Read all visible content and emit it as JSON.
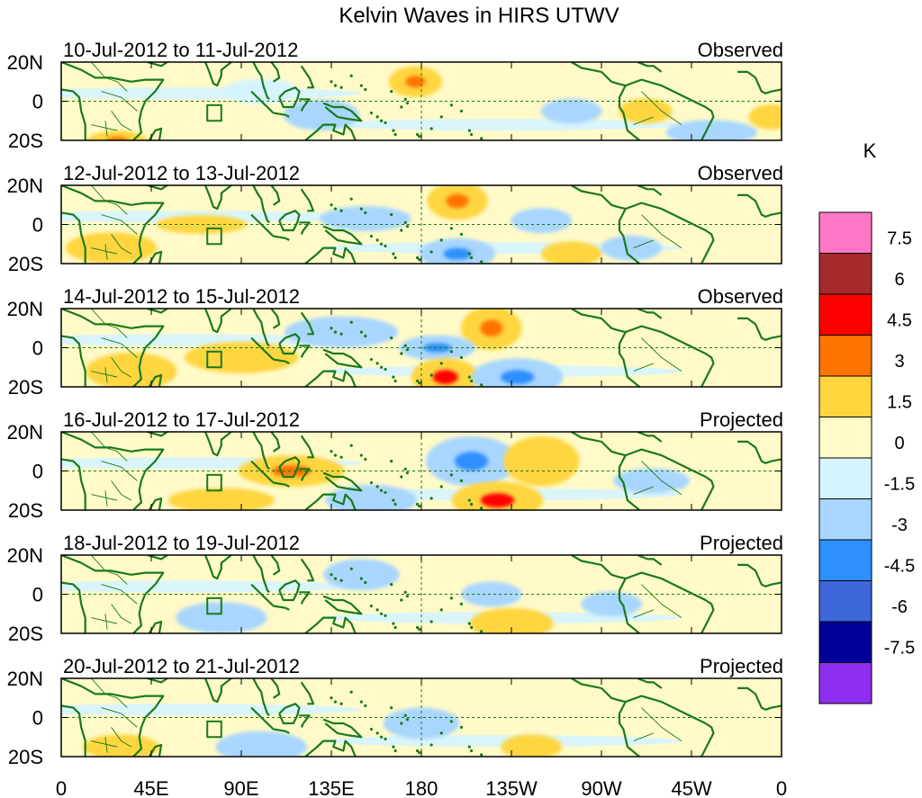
{
  "chart_data": {
    "type": "heatmap",
    "title": "Kelvin Waves in HIRS UTWV",
    "units": "K",
    "x_ticks": [
      "0",
      "45E",
      "90E",
      "135E",
      "180",
      "135W",
      "90W",
      "45W",
      "0"
    ],
    "x_tick_values": [
      0,
      45,
      90,
      135,
      180,
      225,
      270,
      315,
      360
    ],
    "y_ticks": [
      "20N",
      "0",
      "20S"
    ],
    "y_tick_values": [
      20,
      0,
      -20
    ],
    "lon_range": [
      0,
      360
    ],
    "lat_range": [
      -20,
      20
    ],
    "colorbar": {
      "labels": [
        "7.5",
        "6",
        "4.5",
        "3",
        "1.5",
        "0",
        "-1.5",
        "-3",
        "-4.5",
        "-6",
        "-7.5"
      ],
      "colors": [
        "#ff77c4",
        "#a52a2a",
        "#ff0000",
        "#ff7300",
        "#ffd540",
        "#fffac8",
        "#d6f4ff",
        "#a8d6ff",
        "#2e8fff",
        "#3d67da",
        "#000099",
        "#8f2df0"
      ]
    },
    "panels": [
      {
        "date_range": "10-Jul-2012 to 11-Jul-2012",
        "status": "Observed",
        "features": [
          {
            "lon": 177,
            "lat": 10,
            "value": 4.2,
            "dlon": 7,
            "dlat": 5
          },
          {
            "lon": 130,
            "lat": -7,
            "value": -1.8,
            "dlon": 10,
            "dlat": 5
          },
          {
            "lon": 100,
            "lat": 5,
            "value": -1.4,
            "dlon": 10,
            "dlat": 4
          },
          {
            "lon": 28,
            "lat": -20,
            "value": 3.5,
            "dlon": 8,
            "dlat": 3
          },
          {
            "lon": 255,
            "lat": -5,
            "value": -1.7,
            "dlon": 8,
            "dlat": 4
          },
          {
            "lon": 325,
            "lat": -16,
            "value": -2.0,
            "dlon": 12,
            "dlat": 4
          },
          {
            "lon": 292,
            "lat": -5,
            "value": 1.7,
            "dlon": 7,
            "dlat": 4
          },
          {
            "lon": 355,
            "lat": -8,
            "value": 1.8,
            "dlon": 6,
            "dlat": 4
          }
        ]
      },
      {
        "date_range": "12-Jul-2012 to 13-Jul-2012",
        "status": "Observed",
        "features": [
          {
            "lon": 198,
            "lat": 12,
            "value": 4.3,
            "dlon": 8,
            "dlat": 6
          },
          {
            "lon": 198,
            "lat": -15,
            "value": -3.6,
            "dlon": 10,
            "dlat": 5
          },
          {
            "lon": 152,
            "lat": 3,
            "value": -1.9,
            "dlon": 12,
            "dlat": 4
          },
          {
            "lon": 25,
            "lat": -12,
            "value": 2.5,
            "dlon": 12,
            "dlat": 5
          },
          {
            "lon": 70,
            "lat": 0,
            "value": 1.8,
            "dlon": 12,
            "dlat": 3
          },
          {
            "lon": 240,
            "lat": 2,
            "value": -1.7,
            "dlon": 8,
            "dlat": 4
          },
          {
            "lon": 255,
            "lat": -15,
            "value": 1.7,
            "dlon": 8,
            "dlat": 4
          },
          {
            "lon": 285,
            "lat": -12,
            "value": -1.7,
            "dlon": 8,
            "dlat": 4
          }
        ]
      },
      {
        "date_range": "14-Jul-2012 to 15-Jul-2012",
        "status": "Observed",
        "features": [
          {
            "lon": 215,
            "lat": 10,
            "value": 4.4,
            "dlon": 8,
            "dlat": 7
          },
          {
            "lon": 188,
            "lat": 0,
            "value": -3.8,
            "dlon": 10,
            "dlat": 4
          },
          {
            "lon": 192,
            "lat": -15,
            "value": 4.6,
            "dlon": 9,
            "dlat": 6
          },
          {
            "lon": 228,
            "lat": -15,
            "value": -3.7,
            "dlon": 12,
            "dlat": 6
          },
          {
            "lon": 90,
            "lat": -5,
            "value": 2.0,
            "dlon": 15,
            "dlat": 5
          },
          {
            "lon": 35,
            "lat": -12,
            "value": 2.5,
            "dlon": 12,
            "dlat": 6
          },
          {
            "lon": 140,
            "lat": 8,
            "value": -1.6,
            "dlon": 15,
            "dlat": 5
          }
        ]
      },
      {
        "date_range": "16-Jul-2012 to 17-Jul-2012",
        "status": "Projected",
        "features": [
          {
            "lon": 205,
            "lat": 5,
            "value": -3.6,
            "dlon": 12,
            "dlat": 8
          },
          {
            "lon": 218,
            "lat": -15,
            "value": 4.8,
            "dlon": 12,
            "dlat": 6
          },
          {
            "lon": 240,
            "lat": 5,
            "value": 2.2,
            "dlon": 10,
            "dlat": 8
          },
          {
            "lon": 115,
            "lat": 0,
            "value": 3.2,
            "dlon": 14,
            "dlat": 5
          },
          {
            "lon": 80,
            "lat": -15,
            "value": 2.2,
            "dlon": 14,
            "dlat": 4
          },
          {
            "lon": 155,
            "lat": -15,
            "value": -1.6,
            "dlon": 12,
            "dlat": 5
          },
          {
            "lon": 295,
            "lat": -5,
            "value": -1.8,
            "dlon": 10,
            "dlat": 4
          }
        ]
      },
      {
        "date_range": "18-Jul-2012 to 19-Jul-2012",
        "status": "Projected",
        "features": [
          {
            "lon": 225,
            "lat": -15,
            "value": 2.3,
            "dlon": 11,
            "dlat": 5
          },
          {
            "lon": 215,
            "lat": 0,
            "value": -1.7,
            "dlon": 8,
            "dlat": 4
          },
          {
            "lon": 150,
            "lat": 10,
            "value": -1.6,
            "dlon": 10,
            "dlat": 5
          },
          {
            "lon": 80,
            "lat": -12,
            "value": -1.6,
            "dlon": 12,
            "dlat": 5
          },
          {
            "lon": 275,
            "lat": -5,
            "value": -1.6,
            "dlon": 8,
            "dlat": 4
          }
        ]
      },
      {
        "date_range": "20-Jul-2012 to 21-Jul-2012",
        "status": "Projected",
        "features": [
          {
            "lon": 235,
            "lat": -15,
            "value": 1.9,
            "dlon": 8,
            "dlat": 4
          },
          {
            "lon": 180,
            "lat": -3,
            "value": -1.6,
            "dlon": 10,
            "dlat": 5
          },
          {
            "lon": 100,
            "lat": -15,
            "value": -1.6,
            "dlon": 12,
            "dlat": 5
          },
          {
            "lon": 30,
            "lat": -15,
            "value": 1.7,
            "dlon": 10,
            "dlat": 4
          }
        ]
      }
    ]
  }
}
